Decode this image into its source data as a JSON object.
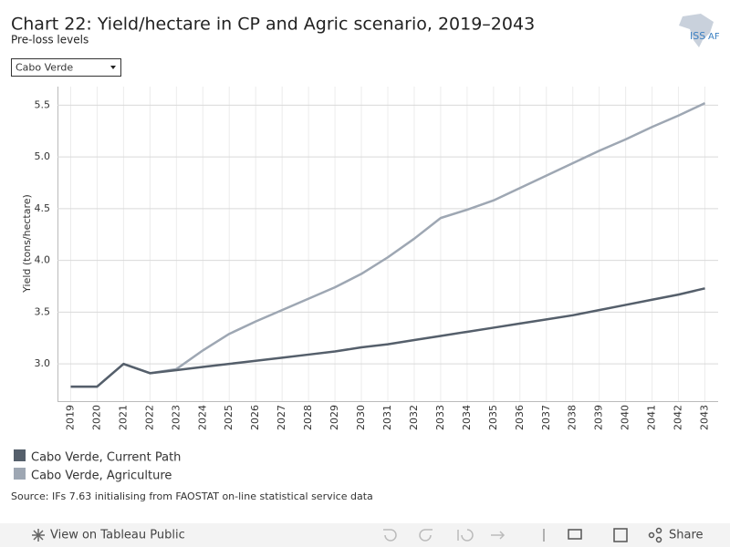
{
  "chart_data": {
    "type": "line",
    "title": "Chart 22: Yield/hectare in CP and Agric scenario, 2019–2043",
    "subtitle": "Pre-loss levels",
    "filter": "Cabo Verde",
    "logo": [
      "ISS",
      "AF"
    ],
    "y_label": "Yield (tons/hectare)",
    "categories": [
      "2019",
      "2020",
      "2021",
      "2022",
      "2023",
      "2024",
      "2025",
      "2026",
      "2027",
      "2028",
      "2029",
      "2030",
      "2031",
      "2032",
      "2033",
      "2034",
      "2035",
      "2036",
      "2037",
      "2038",
      "2039",
      "2040",
      "2041",
      "2042",
      "2043"
    ],
    "series": [
      {
        "name": "Cabo Verde, Current Path",
        "color": "#555f6b",
        "values": [
          2.78,
          2.78,
          3.0,
          2.91,
          2.94,
          2.97,
          3.0,
          3.03,
          3.06,
          3.09,
          3.12,
          3.16,
          3.19,
          3.23,
          3.27,
          3.31,
          3.35,
          3.39,
          3.43,
          3.47,
          3.52,
          3.57,
          3.62,
          3.67,
          3.73
        ]
      },
      {
        "name": "Cabo Verde, Agriculture",
        "color": "#9ea7b3",
        "values": [
          2.78,
          2.78,
          3.0,
          2.91,
          2.95,
          3.13,
          3.29,
          3.41,
          3.52,
          3.63,
          3.74,
          3.87,
          4.03,
          4.21,
          4.41,
          4.49,
          4.58,
          4.7,
          4.82,
          4.94,
          5.06,
          5.17,
          5.29,
          5.4,
          5.52
        ]
      }
    ],
    "ylim": [
      2.64,
      5.68
    ],
    "yticks": [
      {
        "value": 3,
        "label": "3.0"
      },
      3.5,
      {
        "value": 4,
        "label": "4.0"
      },
      4.5,
      {
        "value": 5,
        "label": "5.0"
      },
      5.5
    ],
    "grid": true,
    "source": "Source: IFs 7.63 initialising from FAOSTAT on-line statistical service data",
    "toolbar": {
      "view": "View on Tableau Public",
      "share": "Share"
    }
  }
}
